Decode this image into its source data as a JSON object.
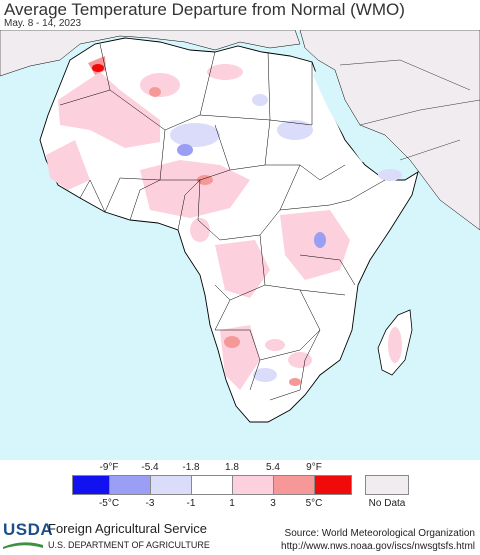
{
  "header": {
    "title": "Average Temperature Departure from Normal (WMO)",
    "date_range": "May. 8 - 14, 2023"
  },
  "map": {
    "region": "Africa",
    "colors": {
      "ocean": "#d6f6fb",
      "land": "#ffffff",
      "no_data": "#f0ecef",
      "border": "#000000"
    }
  },
  "legend": {
    "fahrenheit_labels": [
      "-9°F",
      "-5.4",
      "-1.8",
      "1.8",
      "5.4",
      "9°F"
    ],
    "celsius_labels": [
      "-5°C",
      "-3",
      "-1",
      "1",
      "3",
      "5°C"
    ],
    "swatch_colors": [
      "#1212f0",
      "#9a9ef4",
      "#dadcfa",
      "#ffffff",
      "#fcd0dc",
      "#f79898",
      "#f00a0a"
    ],
    "no_data_label": "No Data",
    "no_data_color": "#f0ecef"
  },
  "footer": {
    "logo_text": "USDA",
    "agency": "Foreign Agricultural Service",
    "department": "U.S. DEPARTMENT OF AGRICULTURE",
    "source_line1": "Source: World Meteorological Organization",
    "source_line2": "http://www.nws.noaa.gov/iscs/nwsgtsfs.html"
  }
}
